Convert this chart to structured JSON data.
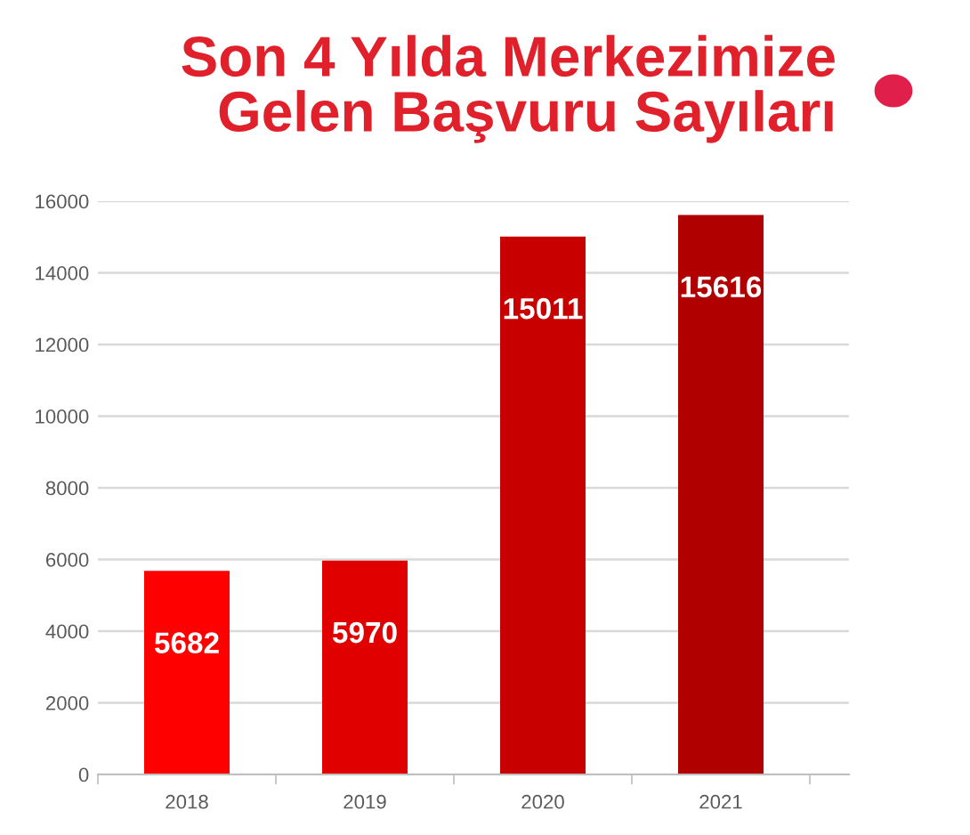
{
  "chart_data": {
    "type": "bar",
    "title": "Son 4 Yılda Merkezimize\nGelen Başvuru Sayıları",
    "categories": [
      "2018",
      "2019",
      "2020",
      "2021"
    ],
    "values": [
      5682,
      5970,
      15011,
      15616
    ],
    "colors": [
      "#ff0000",
      "#e00000",
      "#c80000",
      "#b00000"
    ],
    "ylim": [
      0,
      16000
    ],
    "yticks": [
      0,
      2000,
      4000,
      6000,
      8000,
      10000,
      12000,
      14000,
      16000
    ],
    "grid": "y",
    "data_labels": true
  }
}
